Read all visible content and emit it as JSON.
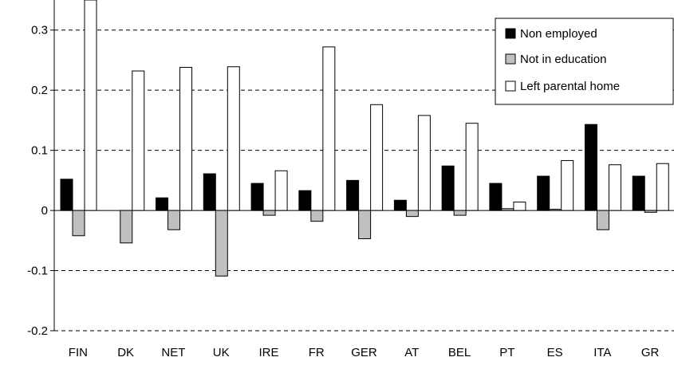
{
  "chart_data": {
    "type": "bar",
    "title": "",
    "xlabel": "",
    "ylabel": "",
    "ylim": [
      -0.2,
      0.35
    ],
    "yticks": [
      -0.2,
      -0.1,
      0,
      0.1,
      0.2,
      0.3
    ],
    "ytick_labels": [
      "-0.2",
      "-0.1",
      "0",
      "0.1",
      "0.2",
      "0.3"
    ],
    "grid": "horizontal dashed",
    "legend_position": "top-right",
    "categories": [
      "FIN",
      "DK",
      "NET",
      "UK",
      "IRE",
      "FR",
      "GER",
      "AT",
      "BEL",
      "PT",
      "ES",
      "ITA",
      "GR"
    ],
    "series": [
      {
        "name": "Non employed",
        "color": "#000000",
        "values": [
          0.052,
          0.0,
          0.021,
          0.061,
          0.045,
          0.033,
          0.05,
          0.017,
          0.074,
          0.045,
          0.057,
          0.143,
          0.057
        ]
      },
      {
        "name": "Not in education",
        "color": "#c0c0c0",
        "values": [
          -0.042,
          -0.054,
          -0.032,
          -0.109,
          -0.008,
          -0.018,
          -0.047,
          -0.01,
          -0.008,
          0.003,
          0.002,
          -0.032,
          -0.003
        ]
      },
      {
        "name": "Left parental home",
        "color": "#ffffff",
        "values": [
          0.36,
          0.232,
          0.238,
          0.239,
          0.066,
          0.272,
          0.176,
          0.158,
          0.145,
          0.014,
          0.083,
          0.076,
          0.078
        ]
      }
    ]
  }
}
